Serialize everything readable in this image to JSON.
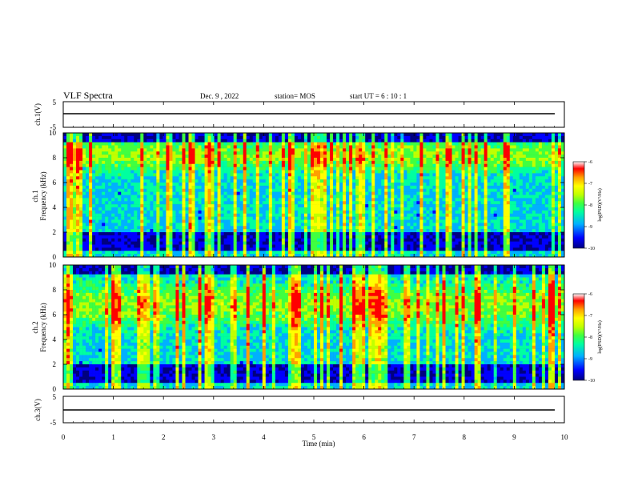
{
  "header": {
    "title": "VLF Spectra",
    "date": "Dec. 9 , 2022",
    "station": "station= MOS",
    "start": "start  UT =   6 : 10 : 1"
  },
  "chart_data": [
    {
      "type": "line",
      "ylabel": "ch.1(V)",
      "ylim": [
        -5,
        5
      ],
      "yticks": [
        "5",
        "-5"
      ],
      "xlim": [
        0,
        10
      ],
      "baseline": 0
    },
    {
      "type": "heatmap",
      "ylabel_line1": "ch.1",
      "ylabel_line2": "Frequency (kHz)",
      "ylim": [
        0,
        10
      ],
      "yticks": [
        "0",
        "2",
        "4",
        "6",
        "8",
        "10"
      ],
      "xlim": [
        0,
        10
      ],
      "colorbar": {
        "label": "log(PSD)(V²/Hz)",
        "range": [
          -10,
          -6
        ],
        "ticks": [
          "-6",
          "-7",
          "-8",
          "-9",
          "-10"
        ]
      }
    },
    {
      "type": "heatmap",
      "ylabel_line1": "ch.2",
      "ylabel_line2": "Frequency (kHz)",
      "ylim": [
        0,
        10
      ],
      "yticks": [
        "0",
        "2",
        "4",
        "6",
        "8",
        "10"
      ],
      "xlim": [
        0,
        10
      ],
      "colorbar": {
        "label": "log(PSD)(V²/Hz)",
        "range": [
          -10,
          -6
        ],
        "ticks": [
          "-6",
          "-7",
          "-8",
          "-9",
          "-10"
        ]
      }
    },
    {
      "type": "line",
      "ylabel": "ch.3(V)",
      "ylim": [
        -5,
        5
      ],
      "yticks": [
        "5",
        "-5"
      ],
      "xlim": [
        0,
        10
      ],
      "xlabel": "Time (min)",
      "xticks": [
        "0",
        "1",
        "2",
        "3",
        "4",
        "5",
        "6",
        "7",
        "8",
        "9",
        "10"
      ],
      "baseline": 0
    }
  ],
  "colors": {
    "colormap": [
      "#000080",
      "#0000ff",
      "#00b0ff",
      "#00ffa0",
      "#40ff40",
      "#c0ff00",
      "#ffff00",
      "#ffa000",
      "#ff0000",
      "#ffffff"
    ]
  }
}
